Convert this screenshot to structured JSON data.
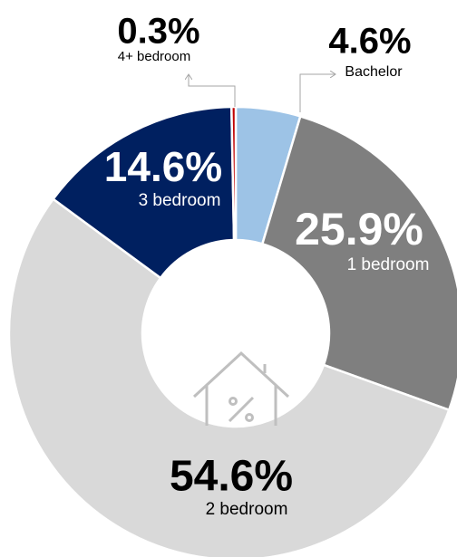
{
  "chart_data": {
    "type": "donut",
    "categories": [
      "Bachelor",
      "1 bedroom",
      "2 bedroom",
      "3 bedroom",
      "4+ bedroom"
    ],
    "values": [
      4.6,
      25.9,
      54.6,
      14.6,
      0.3
    ],
    "value_labels": [
      "4.6%",
      "25.9%",
      "54.6%",
      "14.6%",
      "0.3%"
    ],
    "colors": [
      "#9dc3e6",
      "#7f7f7f",
      "#d9d9d9",
      "#002060",
      "#c00000"
    ]
  }
}
